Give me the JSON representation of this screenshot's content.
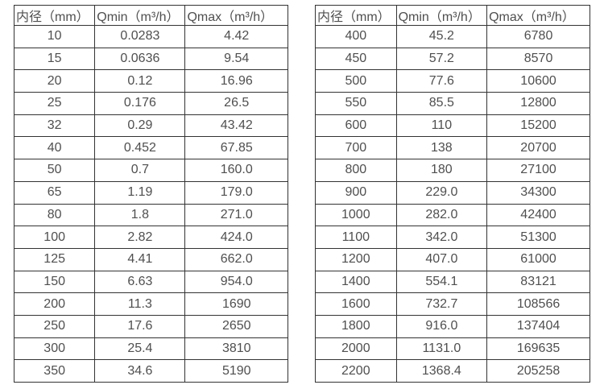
{
  "style": {
    "border_color": "#333333",
    "text_color": "#4f4f4f",
    "background_color": "#ffffff"
  },
  "tables": [
    {
      "name": "small-diameter-flow-table",
      "headers": [
        "内径（mm）",
        "Qmin（m³/h）",
        "Qmax（m³/h）"
      ],
      "rows": [
        [
          "10",
          "0.0283",
          "4.42"
        ],
        [
          "15",
          "0.0636",
          "9.54"
        ],
        [
          "20",
          "0.12",
          "16.96"
        ],
        [
          "25",
          "0.176",
          "26.5"
        ],
        [
          "32",
          "0.29",
          "43.42"
        ],
        [
          "40",
          "0.452",
          "67.85"
        ],
        [
          "50",
          "0.7",
          "160.0"
        ],
        [
          "65",
          "1.19",
          "179.0"
        ],
        [
          "80",
          "1.8",
          "271.0"
        ],
        [
          "100",
          "2.82",
          "424.0"
        ],
        [
          "125",
          "4.41",
          "662.0"
        ],
        [
          "150",
          "6.63",
          "954.0"
        ],
        [
          "200",
          "11.3",
          "1690"
        ],
        [
          "250",
          "17.6",
          "2650"
        ],
        [
          "300",
          "25.4",
          "3810"
        ],
        [
          "350",
          "34.6",
          "5190"
        ]
      ]
    },
    {
      "name": "large-diameter-flow-table",
      "headers": [
        "内径（mm）",
        "Qmin（m³/h）",
        "Qmax（m³/h）"
      ],
      "rows": [
        [
          "400",
          "45.2",
          "6780"
        ],
        [
          "450",
          "57.2",
          "8570"
        ],
        [
          "500",
          "77.6",
          "10600"
        ],
        [
          "550",
          "85.5",
          "12800"
        ],
        [
          "600",
          "110",
          "15200"
        ],
        [
          "700",
          "138",
          "20700"
        ],
        [
          "800",
          "180",
          "27100"
        ],
        [
          "900",
          "229.0",
          "34300"
        ],
        [
          "1000",
          "282.0",
          "42400"
        ],
        [
          "1100",
          "342.0",
          "51300"
        ],
        [
          "1200",
          "407.0",
          "61000"
        ],
        [
          "1400",
          "554.1",
          "83121"
        ],
        [
          "1600",
          "732.7",
          "108566"
        ],
        [
          "1800",
          "916.0",
          "137404"
        ],
        [
          "2000",
          "1131.0",
          "169635"
        ],
        [
          "2200",
          "1368.4",
          "205258"
        ]
      ]
    }
  ]
}
